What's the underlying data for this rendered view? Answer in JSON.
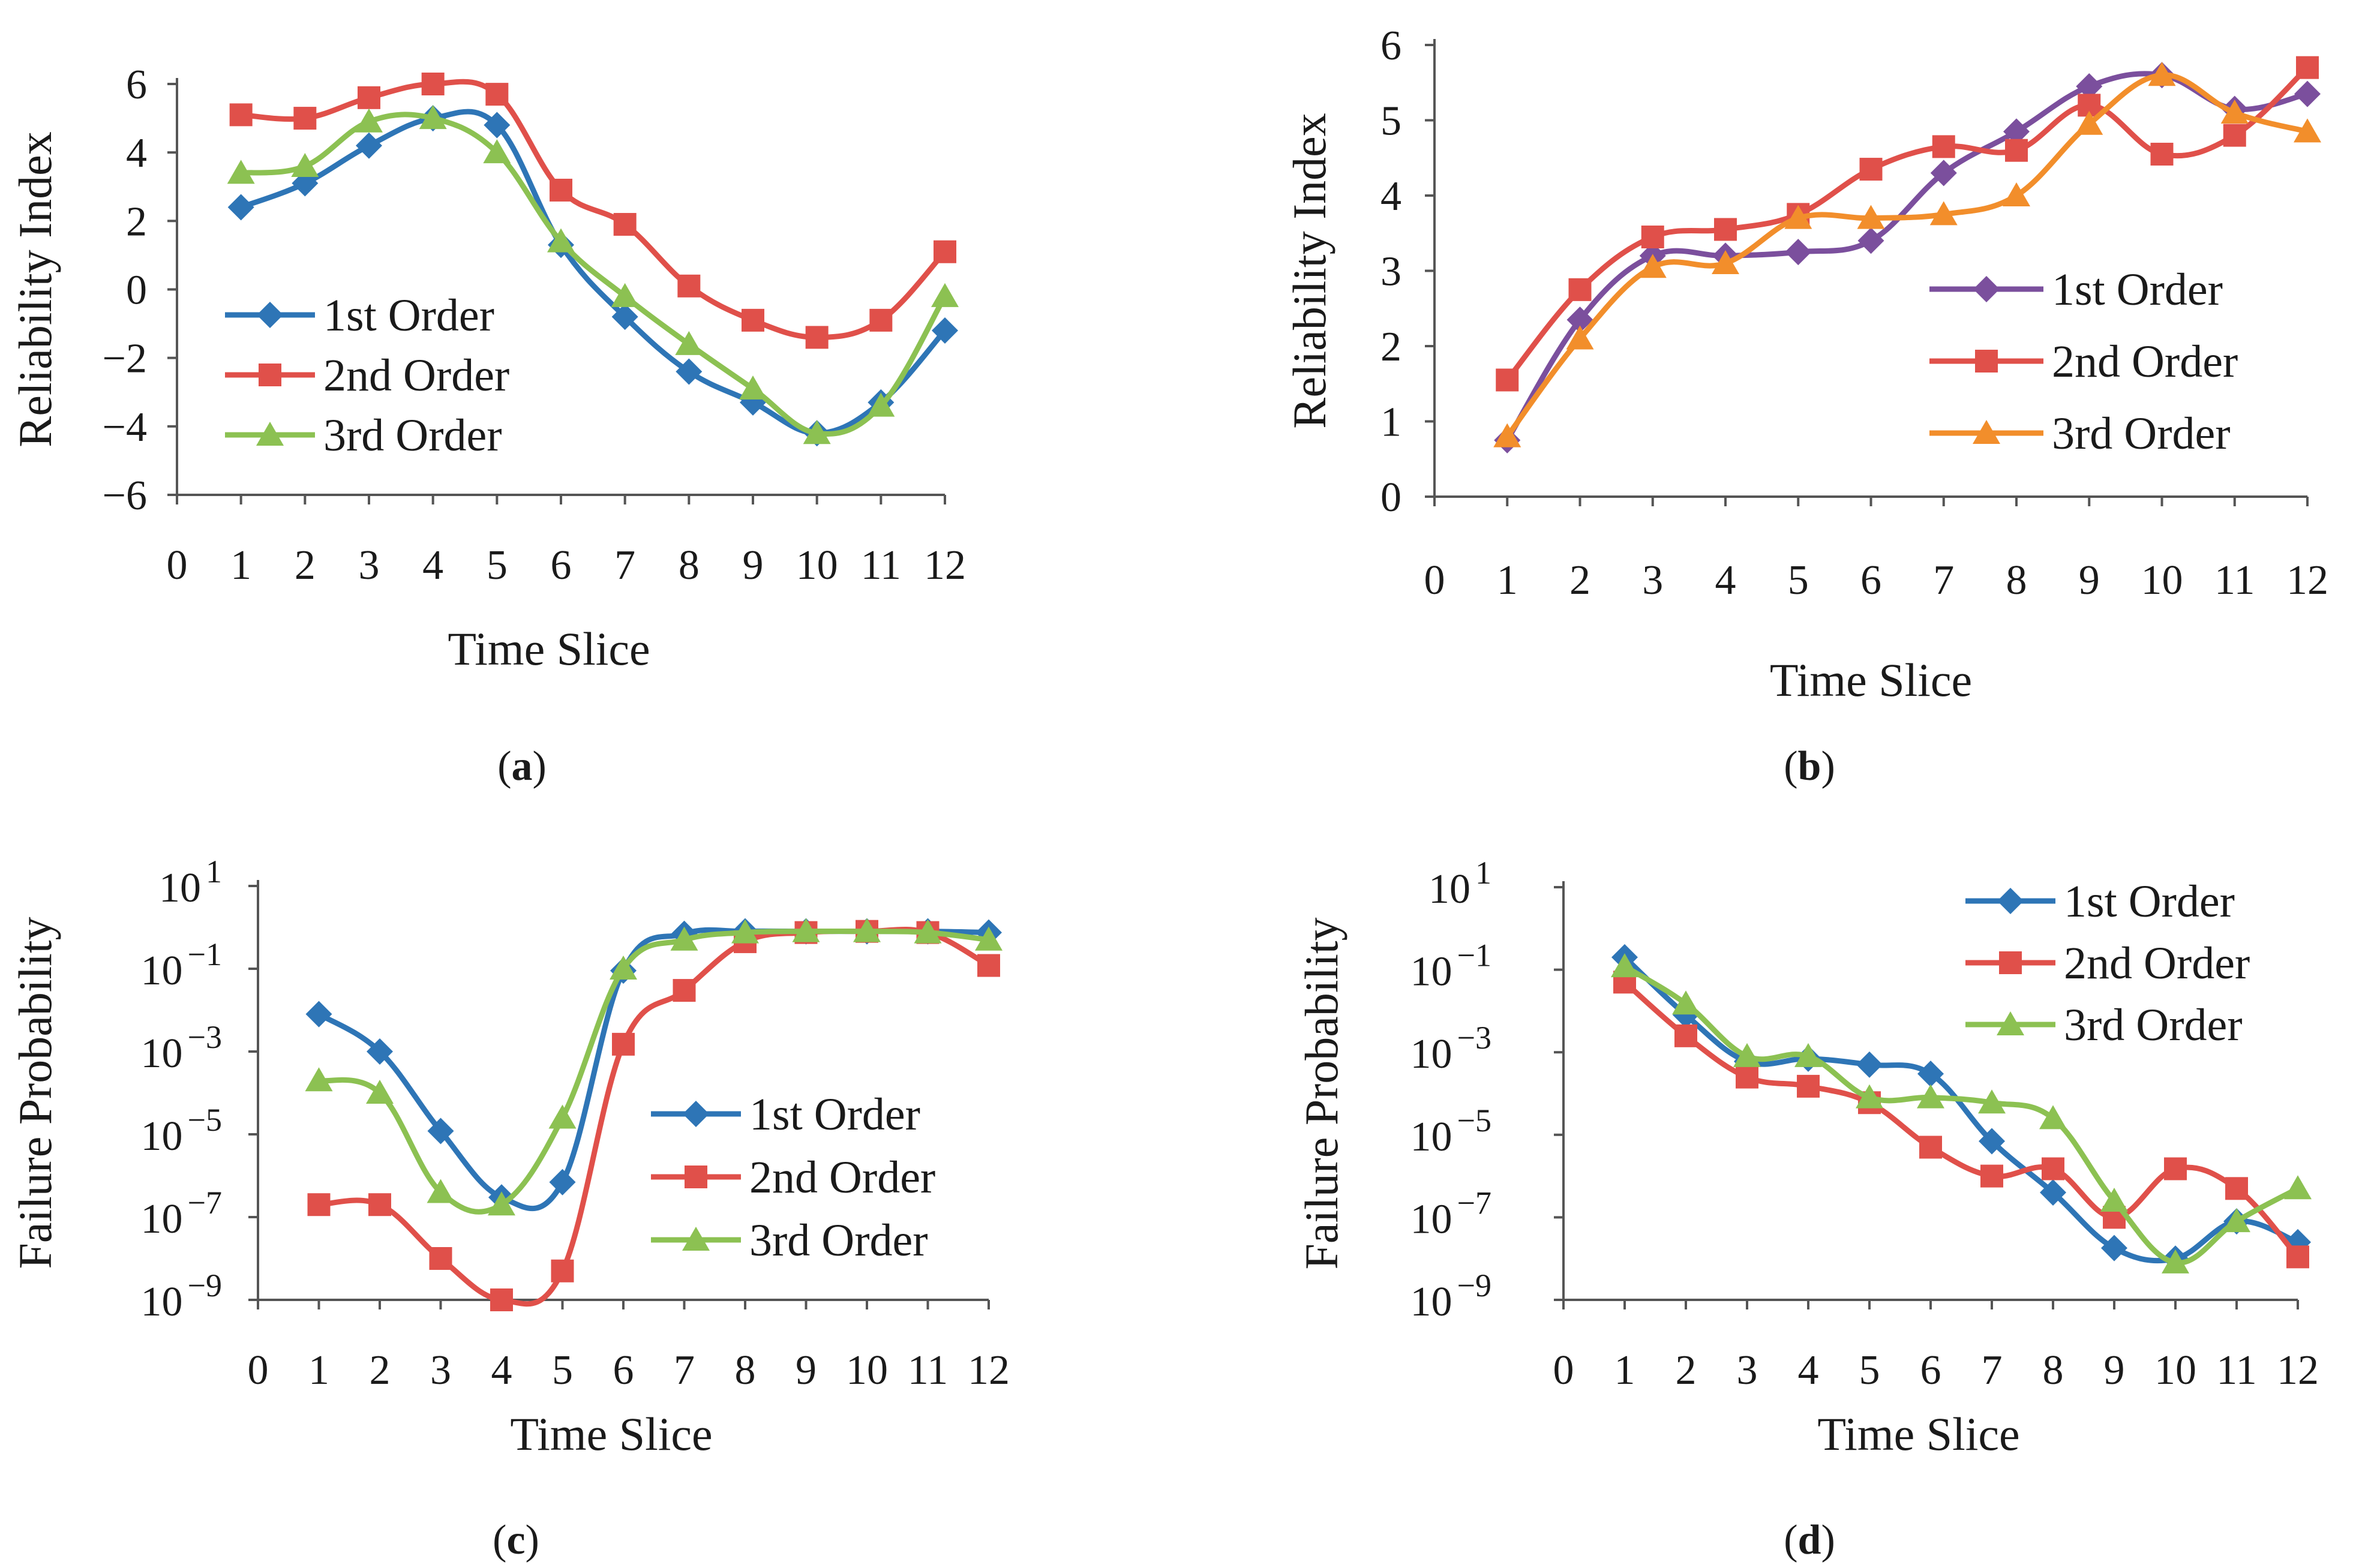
{
  "chart_data": [
    {
      "panel_label": "a",
      "type": "line",
      "xlabel": "Time Slice",
      "ylabel": "Reliability Index",
      "x_ticks": [
        0,
        1,
        2,
        3,
        4,
        5,
        6,
        7,
        8,
        9,
        10,
        11,
        12
      ],
      "y_ticks": [
        -6,
        -4,
        -2,
        0,
        2,
        4,
        6
      ],
      "y_tick_labels": [
        "−6",
        "−4",
        "−2",
        "0",
        "2",
        "4",
        "6"
      ],
      "xlim": [
        0,
        12
      ],
      "ylim": [
        -6,
        6
      ],
      "scale": "linear",
      "legend_position": "center-left",
      "series": [
        {
          "name": "1st Order",
          "color": "#2E75B6",
          "marker": "diamond",
          "x": [
            1,
            2,
            3,
            4,
            5,
            6,
            7,
            8,
            9,
            10,
            11,
            12
          ],
          "values": [
            2.4,
            3.1,
            4.2,
            5.0,
            4.8,
            1.3,
            -0.8,
            -2.4,
            -3.3,
            -4.2,
            -3.3,
            -1.2
          ]
        },
        {
          "name": "2nd Order",
          "color": "#E0504A",
          "marker": "square",
          "x": [
            1,
            2,
            3,
            4,
            5,
            6,
            7,
            8,
            9,
            10,
            11,
            12
          ],
          "values": [
            5.1,
            5.0,
            5.6,
            6.0,
            5.7,
            2.9,
            1.9,
            0.1,
            -0.9,
            -1.4,
            -0.9,
            1.1
          ]
        },
        {
          "name": "3rd Order",
          "color": "#8CC152",
          "marker": "triangle",
          "x": [
            1,
            2,
            3,
            4,
            5,
            6,
            7,
            8,
            9,
            10,
            11,
            12
          ],
          "values": [
            3.4,
            3.6,
            4.9,
            5.0,
            4.0,
            1.4,
            -0.2,
            -1.6,
            -2.9,
            -4.2,
            -3.4,
            -0.2
          ]
        }
      ]
    },
    {
      "panel_label": "b",
      "type": "line",
      "xlabel": "Time Slice",
      "ylabel": "Reliability Index",
      "x_ticks": [
        0,
        1,
        2,
        3,
        4,
        5,
        6,
        7,
        8,
        9,
        10,
        11,
        12
      ],
      "y_ticks": [
        0,
        1,
        2,
        3,
        4,
        5,
        6
      ],
      "y_tick_labels": [
        "0",
        "1",
        "2",
        "3",
        "4",
        "5",
        "6"
      ],
      "xlim": [
        0,
        12
      ],
      "ylim": [
        0,
        6
      ],
      "scale": "linear",
      "legend_position": "center-right",
      "series": [
        {
          "name": "1st Order",
          "color": "#7B4F9D",
          "marker": "diamond",
          "x": [
            1,
            2,
            3,
            4,
            5,
            6,
            7,
            8,
            9,
            10,
            11,
            12
          ],
          "values": [
            0.75,
            2.35,
            3.2,
            3.2,
            3.25,
            3.4,
            4.3,
            4.85,
            5.45,
            5.6,
            5.15,
            5.35
          ]
        },
        {
          "name": "2nd Order",
          "color": "#E0504A",
          "marker": "square",
          "x": [
            1,
            2,
            3,
            4,
            5,
            6,
            7,
            8,
            9,
            10,
            11,
            12
          ],
          "values": [
            1.55,
            2.75,
            3.45,
            3.55,
            3.75,
            4.35,
            4.65,
            4.6,
            5.2,
            4.55,
            4.8,
            5.7
          ]
        },
        {
          "name": "3rd Order",
          "color": "#F28E2B",
          "marker": "triangle",
          "x": [
            1,
            2,
            3,
            4,
            5,
            6,
            7,
            8,
            9,
            10,
            11,
            12
          ],
          "values": [
            0.8,
            2.1,
            3.05,
            3.1,
            3.7,
            3.7,
            3.75,
            4.0,
            4.95,
            5.6,
            5.1,
            4.85
          ]
        }
      ]
    },
    {
      "panel_label": "c",
      "type": "line",
      "xlabel": "Time Slice",
      "ylabel": "Failure Probability",
      "x_ticks": [
        0,
        1,
        2,
        3,
        4,
        5,
        6,
        7,
        8,
        9,
        10,
        11,
        12
      ],
      "y_ticks": [
        -9,
        -7,
        -5,
        -3,
        -1,
        1
      ],
      "y_tick_base": "10",
      "y_tick_exponents": [
        "−9",
        "−7",
        "−5",
        "−3",
        "−1",
        "1"
      ],
      "xlim": [
        0,
        12
      ],
      "ylim": [
        1e-09,
        10
      ],
      "scale": "log",
      "legend_position": "center-right",
      "series": [
        {
          "name": "1st Order",
          "color": "#2E75B6",
          "marker": "diamond",
          "x": [
            1,
            2,
            3,
            4,
            5,
            6,
            7,
            8,
            9,
            10,
            11,
            12
          ],
          "values": [
            0.008,
            0.001,
            1.2e-05,
            3e-07,
            7e-07,
            0.09,
            0.7,
            0.8,
            0.8,
            0.8,
            0.8,
            0.75
          ]
        },
        {
          "name": "2nd Order",
          "color": "#E0504A",
          "marker": "square",
          "x": [
            1,
            2,
            3,
            4,
            5,
            6,
            7,
            8,
            9,
            10,
            11,
            12
          ],
          "values": [
            2e-07,
            2e-07,
            1e-08,
            1e-09,
            5e-09,
            0.0015,
            0.03,
            0.45,
            0.75,
            0.8,
            0.75,
            0.12
          ]
        },
        {
          "name": "3rd Order",
          "color": "#8CC152",
          "marker": "triangle",
          "x": [
            1,
            2,
            3,
            4,
            5,
            6,
            7,
            8,
            9,
            10,
            11,
            12
          ],
          "values": [
            0.0002,
            0.0001,
            4e-07,
            2e-07,
            2.5e-05,
            0.1,
            0.5,
            0.75,
            0.8,
            0.8,
            0.75,
            0.5
          ]
        }
      ]
    },
    {
      "panel_label": "d",
      "type": "line",
      "xlabel": "Time Slice",
      "ylabel": "Failure Probability",
      "x_ticks": [
        0,
        1,
        2,
        3,
        4,
        5,
        6,
        7,
        8,
        9,
        10,
        11,
        12
      ],
      "y_ticks": [
        -9,
        -7,
        -5,
        -3,
        -1,
        1
      ],
      "y_tick_base": "10",
      "y_tick_exponents": [
        "−9",
        "−7",
        "−5",
        "−3",
        "−1",
        "1"
      ],
      "xlim": [
        0,
        12
      ],
      "ylim": [
        1e-09,
        10
      ],
      "scale": "log",
      "legend_position": "top-right",
      "series": [
        {
          "name": "1st Order",
          "color": "#2E75B6",
          "marker": "diamond",
          "x": [
            1,
            2,
            3,
            4,
            5,
            6,
            7,
            8,
            9,
            10,
            11,
            12
          ],
          "values": [
            0.2,
            0.008,
            0.0006,
            0.0007,
            0.0005,
            0.0003,
            7e-06,
            4e-07,
            1.8e-08,
            1e-08,
            8e-08,
            2.5e-08
          ]
        },
        {
          "name": "2nd Order",
          "color": "#E0504A",
          "marker": "square",
          "x": [
            1,
            2,
            3,
            4,
            5,
            6,
            7,
            8,
            9,
            10,
            11,
            12
          ],
          "values": [
            0.05,
            0.0025,
            0.00025,
            0.00015,
            6e-05,
            5e-06,
            1e-06,
            1.5e-06,
            1e-07,
            1.5e-06,
            5e-07,
            1.1e-08
          ]
        },
        {
          "name": "3rd Order",
          "color": "#8CC152",
          "marker": "triangle",
          "x": [
            1,
            2,
            3,
            4,
            5,
            6,
            7,
            8,
            9,
            10,
            11,
            12
          ],
          "values": [
            0.12,
            0.015,
            0.0008,
            0.0008,
            8e-05,
            8e-05,
            6e-05,
            2.5e-05,
            2.5e-07,
            8e-09,
            8e-08,
            5e-07
          ]
        }
      ]
    }
  ]
}
